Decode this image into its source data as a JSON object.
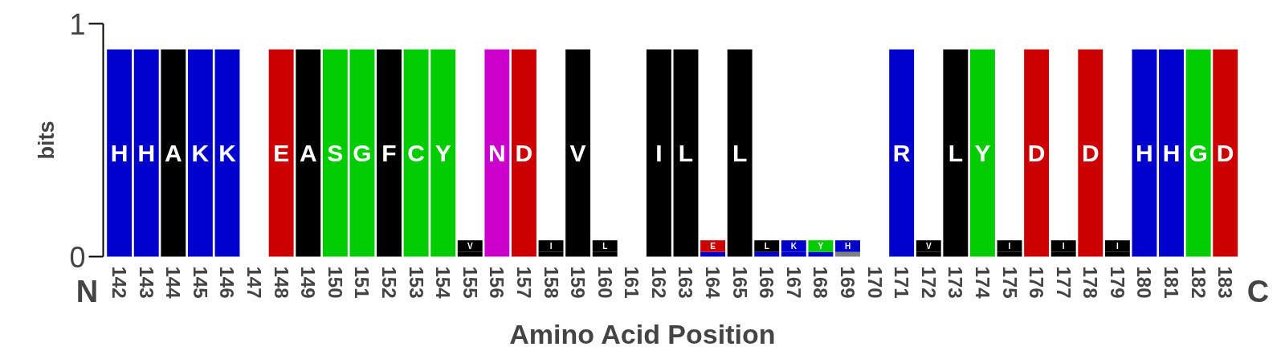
{
  "chart_data": {
    "type": "bar",
    "stacked": true,
    "grid": false,
    "xlabel": "Amino Acid Position",
    "ylabel": "bits",
    "ylim": [
      0,
      1
    ],
    "yticks": [
      0,
      1
    ],
    "annotations": [
      "N",
      "C"
    ],
    "categories": [
      "142",
      "143",
      "144",
      "145",
      "146",
      "147",
      "148",
      "149",
      "150",
      "151",
      "152",
      "153",
      "154",
      "155",
      "156",
      "157",
      "158",
      "159",
      "160",
      "161",
      "162",
      "163",
      "164",
      "165",
      "166",
      "167",
      "168",
      "169",
      "170",
      "171",
      "172",
      "173",
      "174",
      "175",
      "176",
      "177",
      "178",
      "179",
      "180",
      "181",
      "182",
      "183"
    ],
    "series": [
      {
        "colors": [
          null,
          null,
          null,
          null,
          null,
          null,
          null,
          null,
          null,
          null,
          null,
          null,
          null,
          "#000000",
          null,
          null,
          "#000000",
          null,
          "#000000",
          null,
          null,
          null,
          "#0000cc",
          null,
          "#0000cc",
          "#0000cc",
          "#0000cc",
          "#808080",
          null,
          null,
          "#000000",
          null,
          null,
          "#000000",
          null,
          "#000000",
          null,
          "#000000",
          null,
          null,
          null,
          null
        ],
        "values": [
          null,
          null,
          null,
          null,
          null,
          null,
          null,
          null,
          null,
          null,
          null,
          null,
          null,
          0.02,
          null,
          null,
          0.02,
          null,
          0.02,
          null,
          null,
          null,
          0.02,
          null,
          0.02,
          0.02,
          0.02,
          0.02,
          null,
          null,
          0.02,
          null,
          null,
          0.02,
          null,
          0.02,
          null,
          0.02,
          null,
          null,
          null,
          null
        ]
      },
      {
        "name": "H",
        "color": "#0000cc",
        "values": [
          0.89,
          0.89,
          null,
          null,
          null,
          null,
          null,
          null,
          null,
          null,
          null,
          null,
          null,
          null,
          null,
          null,
          null,
          null,
          null,
          null,
          null,
          null,
          null,
          null,
          null,
          null,
          null,
          0.05,
          null,
          null,
          null,
          null,
          null,
          null,
          null,
          null,
          null,
          null,
          0.89,
          0.89,
          null,
          null
        ]
      },
      {
        "name": "A",
        "color": "#000000",
        "values": [
          null,
          null,
          0.89,
          null,
          null,
          null,
          null,
          0.89,
          null,
          null,
          null,
          null,
          null,
          null,
          null,
          null,
          null,
          null,
          null,
          null,
          null,
          null,
          null,
          null,
          null,
          null,
          null,
          null,
          null,
          null,
          null,
          null,
          null,
          null,
          null,
          null,
          null,
          null,
          null,
          null,
          null,
          null
        ]
      },
      {
        "name": "K",
        "color": "#0000cc",
        "values": [
          null,
          null,
          null,
          0.89,
          0.89,
          null,
          null,
          null,
          null,
          null,
          null,
          null,
          null,
          null,
          null,
          null,
          null,
          null,
          null,
          null,
          null,
          null,
          null,
          null,
          null,
          0.05,
          null,
          null,
          null,
          null,
          null,
          null,
          null,
          null,
          null,
          null,
          null,
          null,
          null,
          null,
          null,
          null
        ]
      },
      {
        "name": "E",
        "color": "#cc0000",
        "values": [
          null,
          null,
          null,
          null,
          null,
          null,
          0.89,
          null,
          null,
          null,
          null,
          null,
          null,
          null,
          null,
          null,
          null,
          null,
          null,
          null,
          null,
          null,
          0.05,
          null,
          null,
          null,
          null,
          null,
          null,
          null,
          null,
          null,
          null,
          null,
          null,
          null,
          null,
          null,
          null,
          null,
          null,
          null
        ]
      },
      {
        "name": "S",
        "color": "#00cc00",
        "values": [
          null,
          null,
          null,
          null,
          null,
          null,
          null,
          null,
          0.89,
          null,
          null,
          null,
          null,
          null,
          null,
          null,
          null,
          null,
          null,
          null,
          null,
          null,
          null,
          null,
          null,
          null,
          null,
          null,
          null,
          null,
          null,
          null,
          null,
          null,
          null,
          null,
          null,
          null,
          null,
          null,
          null,
          null
        ]
      },
      {
        "name": "G",
        "color": "#00cc00",
        "values": [
          null,
          null,
          null,
          null,
          null,
          null,
          null,
          null,
          null,
          0.89,
          null,
          null,
          null,
          null,
          null,
          null,
          null,
          null,
          null,
          null,
          null,
          null,
          null,
          null,
          null,
          null,
          null,
          null,
          null,
          null,
          null,
          null,
          null,
          null,
          null,
          null,
          null,
          null,
          null,
          null,
          0.89,
          null
        ]
      },
      {
        "name": "F",
        "color": "#000000",
        "values": [
          null,
          null,
          null,
          null,
          null,
          null,
          null,
          null,
          null,
          null,
          0.89,
          null,
          null,
          null,
          null,
          null,
          null,
          null,
          null,
          null,
          null,
          null,
          null,
          null,
          null,
          null,
          null,
          null,
          null,
          null,
          null,
          null,
          null,
          null,
          null,
          null,
          null,
          null,
          null,
          null,
          null,
          null
        ]
      },
      {
        "name": "C",
        "color": "#00cc00",
        "values": [
          null,
          null,
          null,
          null,
          null,
          null,
          null,
          null,
          null,
          null,
          null,
          0.89,
          null,
          null,
          null,
          null,
          null,
          null,
          null,
          null,
          null,
          null,
          null,
          null,
          null,
          null,
          null,
          null,
          null,
          null,
          null,
          null,
          null,
          null,
          null,
          null,
          null,
          null,
          null,
          null,
          null,
          null
        ]
      },
      {
        "name": "Y",
        "color": "#00cc00",
        "values": [
          null,
          null,
          null,
          null,
          null,
          null,
          null,
          null,
          null,
          null,
          null,
          null,
          0.89,
          null,
          null,
          null,
          null,
          null,
          null,
          null,
          null,
          null,
          null,
          null,
          null,
          null,
          0.05,
          null,
          null,
          null,
          null,
          null,
          0.89,
          null,
          null,
          null,
          null,
          null,
          null,
          null,
          null,
          null
        ]
      },
      {
        "name": "V",
        "color": "#000000",
        "values": [
          null,
          null,
          null,
          null,
          null,
          null,
          null,
          null,
          null,
          null,
          null,
          null,
          null,
          0.05,
          null,
          null,
          null,
          0.89,
          null,
          null,
          null,
          null,
          null,
          null,
          null,
          null,
          null,
          null,
          null,
          null,
          0.05,
          null,
          null,
          null,
          null,
          null,
          null,
          null,
          null,
          null,
          null,
          null
        ]
      },
      {
        "name": "N",
        "color": "#cc00cc",
        "values": [
          null,
          null,
          null,
          null,
          null,
          null,
          null,
          null,
          null,
          null,
          null,
          null,
          null,
          null,
          0.89,
          null,
          null,
          null,
          null,
          null,
          null,
          null,
          null,
          null,
          null,
          null,
          null,
          null,
          null,
          null,
          null,
          null,
          null,
          null,
          null,
          null,
          null,
          null,
          null,
          null,
          null,
          null
        ]
      },
      {
        "name": "D",
        "color": "#cc0000",
        "values": [
          null,
          null,
          null,
          null,
          null,
          null,
          null,
          null,
          null,
          null,
          null,
          null,
          null,
          null,
          null,
          0.89,
          null,
          null,
          null,
          null,
          null,
          null,
          null,
          null,
          null,
          null,
          null,
          null,
          null,
          null,
          null,
          null,
          null,
          null,
          0.89,
          null,
          0.89,
          null,
          null,
          null,
          null,
          0.89
        ]
      },
      {
        "name": "I",
        "color": "#000000",
        "values": [
          null,
          null,
          null,
          null,
          null,
          null,
          null,
          null,
          null,
          null,
          null,
          null,
          null,
          null,
          null,
          null,
          0.05,
          null,
          null,
          null,
          0.89,
          null,
          null,
          null,
          null,
          null,
          null,
          null,
          null,
          null,
          null,
          null,
          null,
          0.05,
          null,
          0.05,
          null,
          0.05,
          null,
          null,
          null,
          null
        ]
      },
      {
        "name": "L",
        "color": "#000000",
        "values": [
          null,
          null,
          null,
          null,
          null,
          null,
          null,
          null,
          null,
          null,
          null,
          null,
          null,
          null,
          null,
          null,
          null,
          null,
          0.05,
          null,
          null,
          0.89,
          null,
          0.89,
          0.05,
          null,
          null,
          null,
          null,
          null,
          null,
          0.89,
          null,
          null,
          null,
          null,
          null,
          null,
          null,
          null,
          null,
          null
        ]
      },
      {
        "name": "R",
        "color": "#0000cc",
        "values": [
          null,
          null,
          null,
          null,
          null,
          null,
          null,
          null,
          null,
          null,
          null,
          null,
          null,
          null,
          null,
          null,
          null,
          null,
          null,
          null,
          null,
          null,
          null,
          null,
          null,
          null,
          null,
          null,
          null,
          0.89,
          null,
          null,
          null,
          null,
          null,
          null,
          null,
          null,
          null,
          null,
          null,
          null
        ]
      }
    ]
  }
}
